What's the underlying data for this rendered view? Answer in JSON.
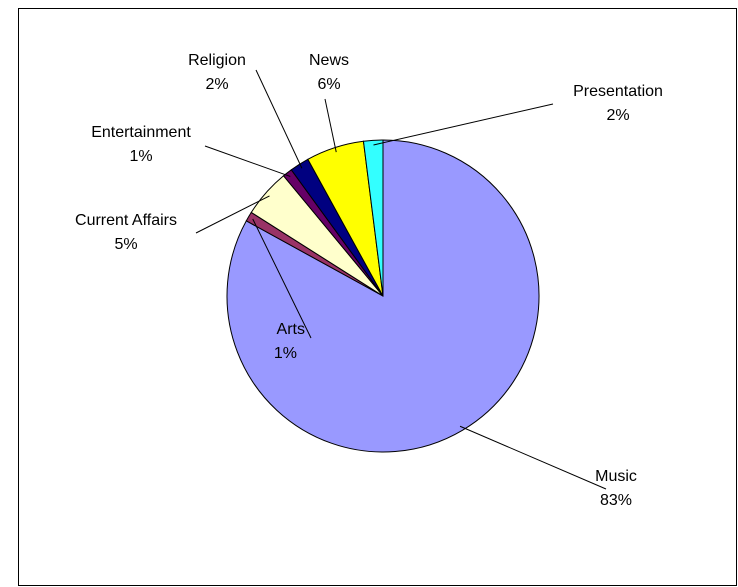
{
  "chart_data": {
    "type": "pie",
    "title": "",
    "start_angle": "12 o'clock",
    "direction": "clockwise",
    "legend": "none",
    "slices": [
      {
        "name": "Music",
        "value": 83,
        "label": "83%",
        "color": "#9999FF"
      },
      {
        "name": "Arts",
        "value": 1,
        "label": "1%",
        "color": "#993366"
      },
      {
        "name": "Current Affairs",
        "value": 5,
        "label": "5%",
        "color": "#FFFFCC"
      },
      {
        "name": "Entertainment",
        "value": 1,
        "label": "1%",
        "color": "#660066"
      },
      {
        "name": "Religion",
        "value": 2,
        "label": "2%",
        "color": "#000080"
      },
      {
        "name": "News",
        "value": 6,
        "label": "6%",
        "color": "#FFFF00"
      },
      {
        "name": "Presentation",
        "value": 2,
        "label": "2%",
        "color": "#33FFFF"
      }
    ]
  }
}
